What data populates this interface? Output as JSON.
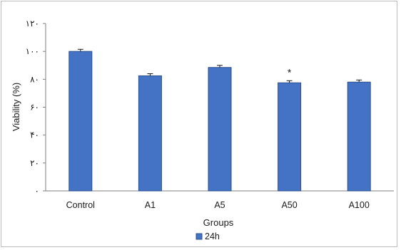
{
  "chart_data": {
    "type": "bar",
    "title": "",
    "xlabel": "Groups",
    "ylabel": "Viability (%)",
    "categories": [
      "Control",
      "A1",
      "A5",
      "A50",
      "A100"
    ],
    "series": [
      {
        "name": "24h",
        "values": [
          100,
          82.5,
          88.5,
          77.5,
          78
        ],
        "error": [
          1.5,
          1.5,
          1.5,
          1.5,
          1.5
        ],
        "color": "#4472c4",
        "edge_color": "#2b4f8c"
      }
    ],
    "ylim": [
      0,
      120
    ],
    "yticks": [
      0,
      20,
      40,
      60,
      80,
      100,
      120
    ],
    "ytick_labels": [
      "٠",
      "٢٠",
      "۴٠",
      "۶٠",
      "٨٠",
      "١٠٠",
      "١٢٠"
    ],
    "grid": false,
    "legend": "bottom-center",
    "annotations": [
      {
        "category": "A50",
        "text": "*"
      }
    ]
  }
}
